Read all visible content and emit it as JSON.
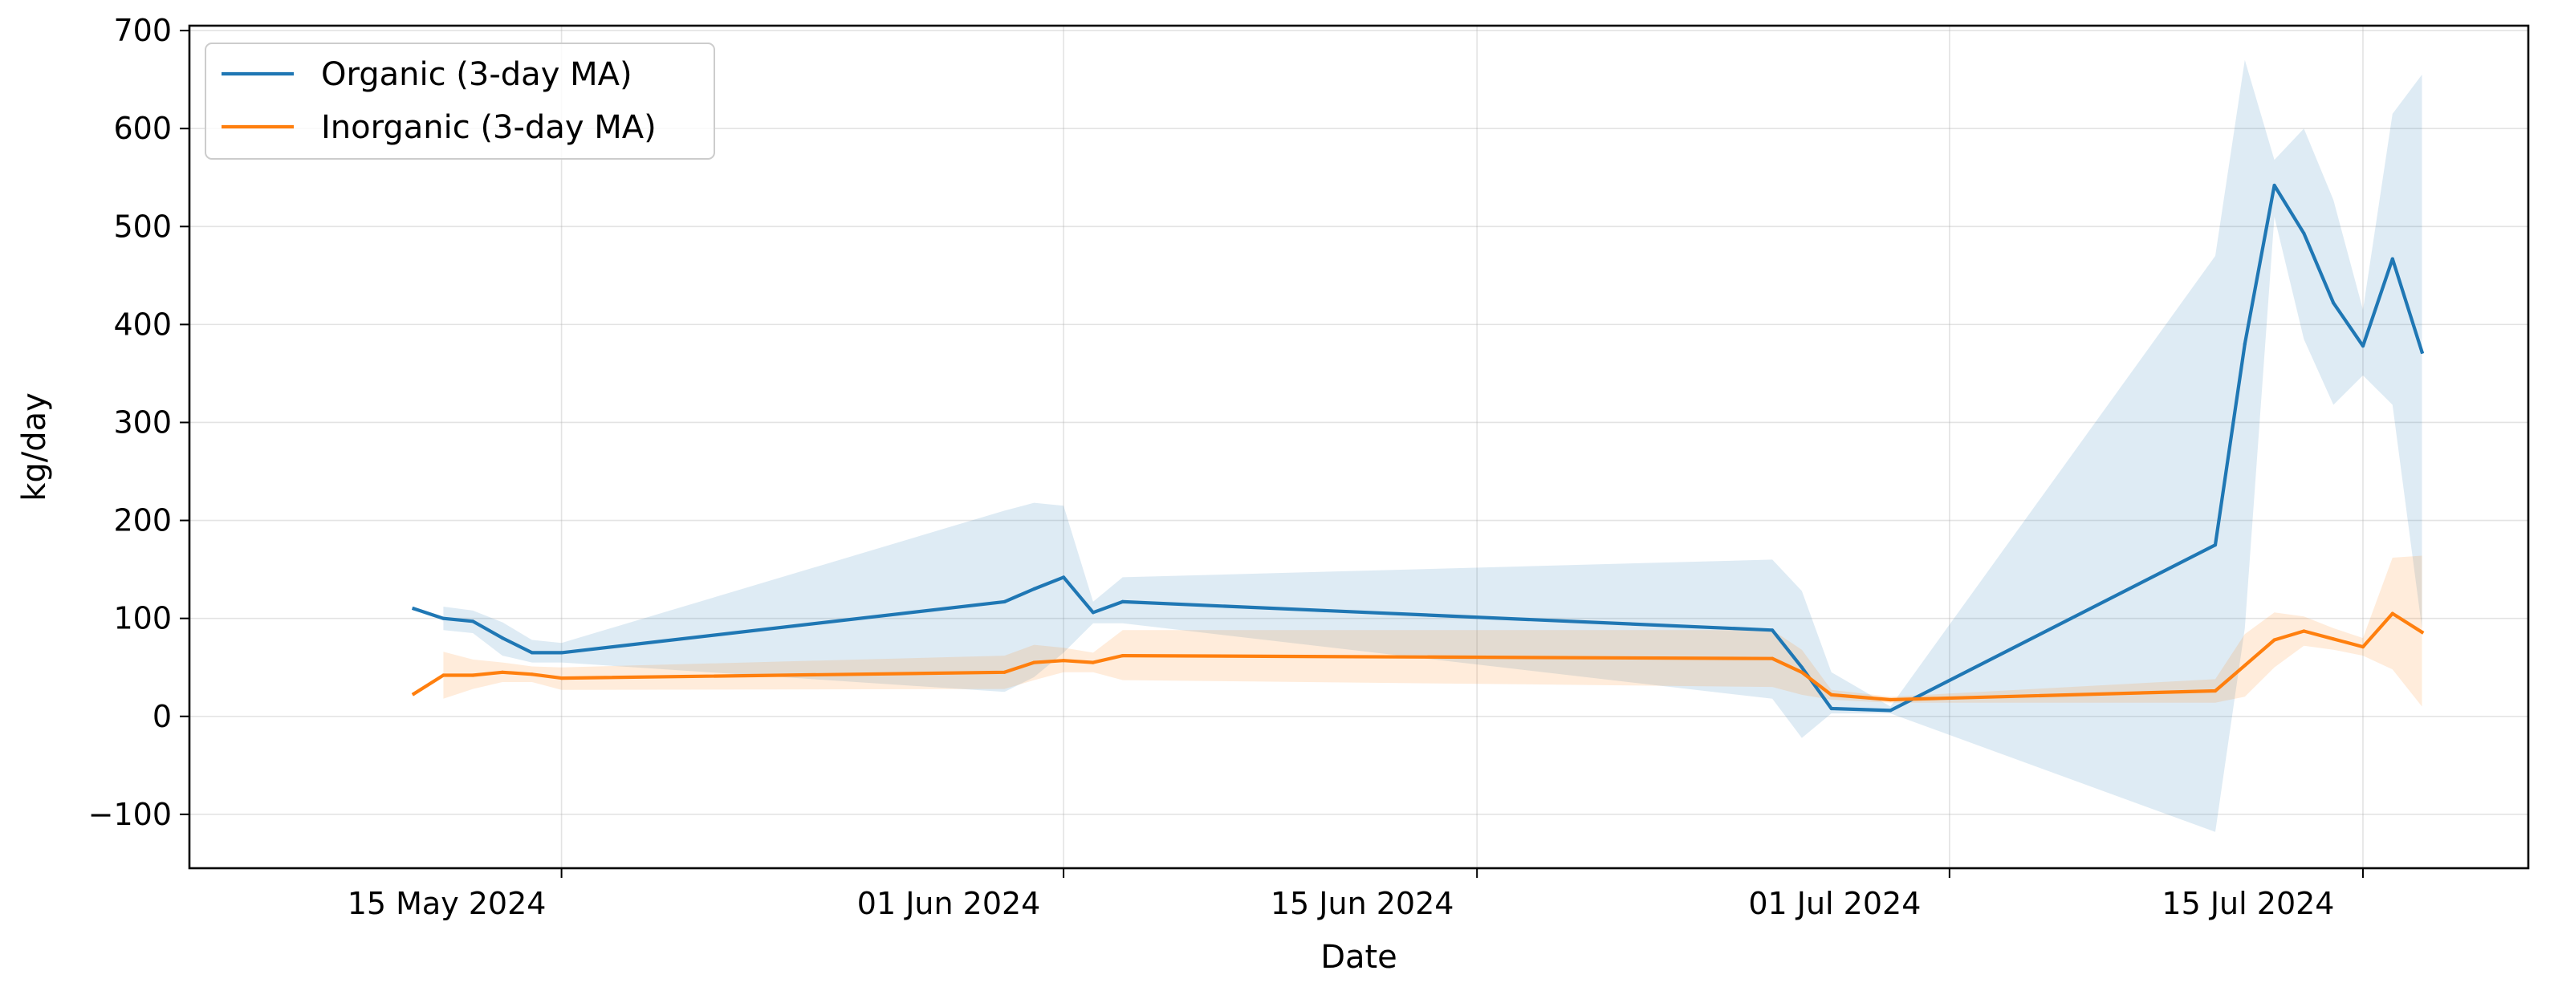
{
  "chart_data": {
    "type": "line",
    "title": "",
    "xlabel": "Date",
    "ylabel": "kg/day",
    "x_range": [
      "2024-05-06",
      "2024-07-17"
    ],
    "ylim": [
      -155,
      705
    ],
    "y_ticks": [
      -100,
      0,
      100,
      200,
      300,
      400,
      500,
      600,
      700
    ],
    "y_tick_labels": [
      "−100",
      "0",
      "100",
      "200",
      "300",
      "400",
      "500",
      "600",
      "700"
    ],
    "x_ticks": [
      {
        "date": "2024-05-15",
        "label": "15 May 2024"
      },
      {
        "date": "2024-06-01",
        "label": "01 Jun 2024"
      },
      {
        "date": "2024-06-15",
        "label": "15 Jun 2024"
      },
      {
        "date": "2024-07-01",
        "label": "01 Jul 2024"
      },
      {
        "date": "2024-07-15",
        "label": "15 Jul 2024"
      }
    ],
    "grid": true,
    "legend_position": "top-left",
    "series": [
      {
        "name": "Organic (3-day MA)",
        "color": "#1f77b4",
        "band_color": "#1f77b4",
        "points": [
          {
            "x": "2024-05-10",
            "y": 110,
            "lo": null,
            "hi": null
          },
          {
            "x": "2024-05-11",
            "y": 100,
            "lo": 88,
            "hi": 112
          },
          {
            "x": "2024-05-12",
            "y": 97,
            "lo": 85,
            "hi": 108
          },
          {
            "x": "2024-05-13",
            "y": 80,
            "lo": 62,
            "hi": 96
          },
          {
            "x": "2024-05-14",
            "y": 65,
            "lo": 55,
            "hi": 78
          },
          {
            "x": "2024-05-15",
            "y": 65,
            "lo": 55,
            "hi": 75
          },
          {
            "x": "2024-05-30",
            "y": 117,
            "lo": 25,
            "hi": 210
          },
          {
            "x": "2024-05-31",
            "y": 130,
            "lo": 40,
            "hi": 218
          },
          {
            "x": "2024-06-01",
            "y": 142,
            "lo": 65,
            "hi": 215
          },
          {
            "x": "2024-06-02",
            "y": 106,
            "lo": 95,
            "hi": 117
          },
          {
            "x": "2024-06-03",
            "y": 117,
            "lo": 95,
            "hi": 142
          },
          {
            "x": "2024-06-25",
            "y": 88,
            "lo": 18,
            "hi": 160
          },
          {
            "x": "2024-06-26",
            "y": 50,
            "lo": -22,
            "hi": 128
          },
          {
            "x": "2024-06-27",
            "y": 8,
            "lo": 3,
            "hi": 45
          },
          {
            "x": "2024-06-29",
            "y": 6,
            "lo": 3,
            "hi": 10
          },
          {
            "x": "2024-07-10",
            "y": 175,
            "lo": -118,
            "hi": 470
          },
          {
            "x": "2024-07-11",
            "y": 380,
            "lo": 90,
            "hi": 670
          },
          {
            "x": "2024-07-12",
            "y": 542,
            "lo": 510,
            "hi": 568
          },
          {
            "x": "2024-07-13",
            "y": 493,
            "lo": 385,
            "hi": 600
          },
          {
            "x": "2024-07-14",
            "y": 422,
            "lo": 318,
            "hi": 527
          },
          {
            "x": "2024-07-15",
            "y": 378,
            "lo": 348,
            "hi": 415
          },
          {
            "x": "2024-07-16",
            "y": 467,
            "lo": 318,
            "hi": 615
          },
          {
            "x": "2024-07-17",
            "y": 372,
            "lo": 90,
            "hi": 655
          }
        ]
      },
      {
        "name": "Inorganic (3-day MA)",
        "color": "#ff7f0e",
        "band_color": "#ff7f0e",
        "points": [
          {
            "x": "2024-05-10",
            "y": 23,
            "lo": null,
            "hi": null
          },
          {
            "x": "2024-05-11",
            "y": 42,
            "lo": 18,
            "hi": 66
          },
          {
            "x": "2024-05-12",
            "y": 42,
            "lo": 28,
            "hi": 58
          },
          {
            "x": "2024-05-13",
            "y": 45,
            "lo": 35,
            "hi": 55
          },
          {
            "x": "2024-05-14",
            "y": 43,
            "lo": 35,
            "hi": 51
          },
          {
            "x": "2024-05-15",
            "y": 39,
            "lo": 27,
            "hi": 50
          },
          {
            "x": "2024-05-30",
            "y": 45,
            "lo": 28,
            "hi": 62
          },
          {
            "x": "2024-05-31",
            "y": 55,
            "lo": 37,
            "hi": 73
          },
          {
            "x": "2024-06-01",
            "y": 57,
            "lo": 45,
            "hi": 70
          },
          {
            "x": "2024-06-02",
            "y": 55,
            "lo": 45,
            "hi": 65
          },
          {
            "x": "2024-06-03",
            "y": 62,
            "lo": 37,
            "hi": 88
          },
          {
            "x": "2024-06-25",
            "y": 59,
            "lo": 30,
            "hi": 88
          },
          {
            "x": "2024-06-26",
            "y": 45,
            "lo": 22,
            "hi": 68
          },
          {
            "x": "2024-06-27",
            "y": 22,
            "lo": 17,
            "hi": 27
          },
          {
            "x": "2024-06-29",
            "y": 17,
            "lo": 14,
            "hi": 20
          },
          {
            "x": "2024-07-10",
            "y": 26,
            "lo": 14,
            "hi": 38
          },
          {
            "x": "2024-07-11",
            "y": 52,
            "lo": 20,
            "hi": 84
          },
          {
            "x": "2024-07-12",
            "y": 78,
            "lo": 50,
            "hi": 106
          },
          {
            "x": "2024-07-13",
            "y": 87,
            "lo": 72,
            "hi": 102
          },
          {
            "x": "2024-07-14",
            "y": 79,
            "lo": 68,
            "hi": 90
          },
          {
            "x": "2024-07-15",
            "y": 71,
            "lo": 62,
            "hi": 80
          },
          {
            "x": "2024-07-16",
            "y": 105,
            "lo": 48,
            "hi": 162
          },
          {
            "x": "2024-07-17",
            "y": 86,
            "lo": 10,
            "hi": 164
          }
        ]
      }
    ]
  }
}
